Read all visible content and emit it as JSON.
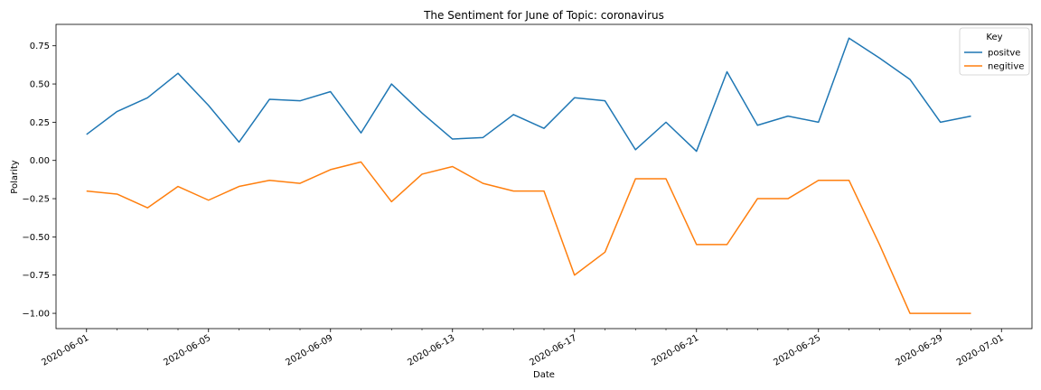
{
  "chart_data": {
    "type": "line",
    "title": "The Sentiment for June of Topic: coronavirus",
    "xlabel": "Date",
    "ylabel": "Polarity",
    "xlim": [
      "2020-05-31",
      "2020-07-02"
    ],
    "ylim": [
      -1.1,
      0.89
    ],
    "x_tick_labels": [
      "2020-06-01",
      "2020-06-05",
      "2020-06-09",
      "2020-06-13",
      "2020-06-17",
      "2020-06-21",
      "2020-06-25",
      "2020-06-29",
      "2020-07-01"
    ],
    "y_tick_labels": [
      "0.75",
      "0.50",
      "0.25",
      "0.00",
      "−0.25",
      "−0.50",
      "−0.75",
      "−1.00"
    ],
    "y_ticks": [
      0.75,
      0.5,
      0.25,
      0.0,
      -0.25,
      -0.5,
      -0.75,
      -1.0
    ],
    "grid": false,
    "legend": {
      "title": "Key",
      "placement": "top-right"
    },
    "x": [
      "2020-06-01",
      "2020-06-02",
      "2020-06-03",
      "2020-06-04",
      "2020-06-05",
      "2020-06-06",
      "2020-06-07",
      "2020-06-08",
      "2020-06-09",
      "2020-06-10",
      "2020-06-11",
      "2020-06-12",
      "2020-06-13",
      "2020-06-14",
      "2020-06-15",
      "2020-06-16",
      "2020-06-17",
      "2020-06-18",
      "2020-06-19",
      "2020-06-20",
      "2020-06-21",
      "2020-06-22",
      "2020-06-23",
      "2020-06-24",
      "2020-06-25",
      "2020-06-26",
      "2020-06-27",
      "2020-06-28",
      "2020-06-29",
      "2020-06-30"
    ],
    "series": [
      {
        "name": "positve",
        "color": "#1f77b4",
        "values": [
          0.17,
          0.32,
          0.41,
          0.57,
          0.36,
          0.12,
          0.4,
          0.39,
          0.45,
          0.18,
          0.5,
          0.31,
          0.14,
          0.15,
          0.3,
          0.21,
          0.41,
          0.39,
          0.07,
          0.25,
          0.06,
          0.58,
          0.23,
          0.29,
          0.25,
          0.8,
          0.67,
          0.53,
          0.25,
          0.29
        ]
      },
      {
        "name": "negitive",
        "color": "#ff7f0e",
        "values": [
          -0.2,
          -0.22,
          -0.31,
          -0.17,
          -0.26,
          -0.17,
          -0.13,
          -0.15,
          -0.06,
          -0.01,
          -0.27,
          -0.09,
          -0.04,
          -0.15,
          -0.2,
          -0.2,
          -0.75,
          -0.6,
          -0.12,
          -0.12,
          -0.55,
          -0.55,
          -0.25,
          -0.25,
          -0.13,
          -0.13,
          -0.55,
          -1.0,
          -1.0,
          -1.0
        ]
      }
    ]
  }
}
